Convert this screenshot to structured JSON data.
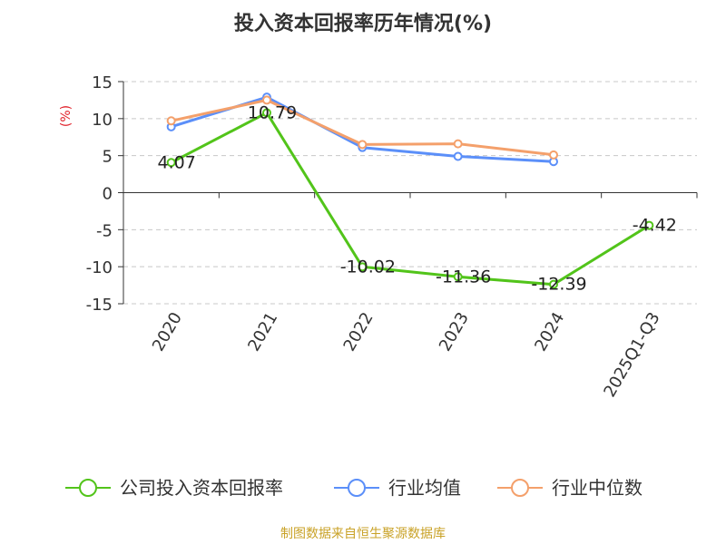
{
  "chart_data": {
    "type": "line",
    "title": "投入资本回报率历年情况(%)",
    "ylabel": "(%)",
    "xlabel": "",
    "categories": [
      "2020",
      "2021",
      "2022",
      "2023",
      "2024",
      "2025Q1-Q3"
    ],
    "ylim": [
      -15,
      15
    ],
    "yticks": [
      15,
      10,
      5,
      0,
      -5,
      -10,
      -15
    ],
    "grid": true,
    "legend_position": "bottom",
    "series": [
      {
        "name": "公司投入资本回报率",
        "color": "#52c41a",
        "values": [
          4.07,
          10.79,
          -10.02,
          -11.36,
          -12.39,
          -4.42
        ],
        "labels": [
          "4.07",
          "10.79",
          "-10.02",
          "-11.36",
          "-12.39",
          "-4.42"
        ]
      },
      {
        "name": "行业均值",
        "color": "#5b8ff9",
        "values": [
          8.9,
          12.9,
          6.1,
          4.9,
          4.2,
          null
        ]
      },
      {
        "name": "行业中位数",
        "color": "#f4a06b",
        "values": [
          9.7,
          12.5,
          6.5,
          6.6,
          5.1,
          null
        ]
      }
    ]
  },
  "source": "制图数据来自恒生聚源数据库"
}
